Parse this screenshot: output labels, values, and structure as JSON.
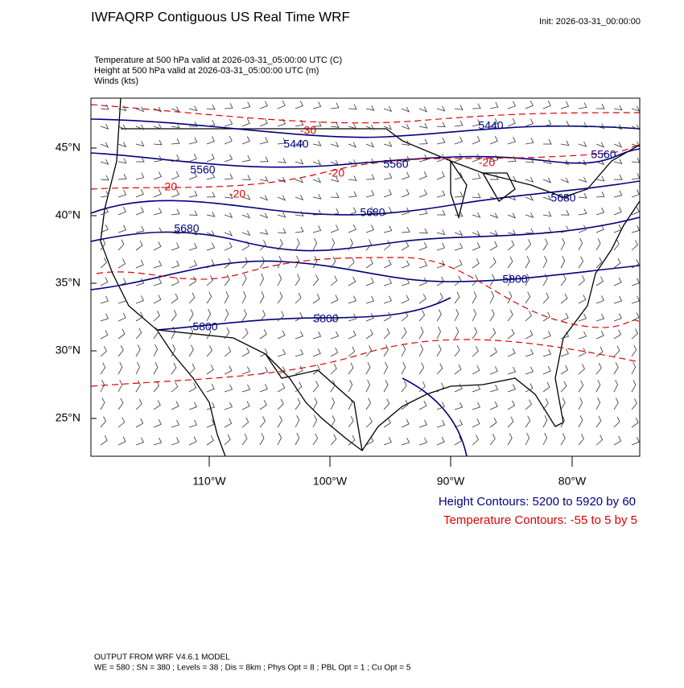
{
  "header": {
    "title": "IWFAQRP Contiguous US Real Time WRF",
    "init": "Init: 2026-03-31_00:00:00"
  },
  "fields": [
    "Temperature at 500 hPa valid at 2026-03-31_05:00:00 UTC   (C)",
    "Height at 500 hPa valid at 2026-03-31_05:00:00 UTC   (m)",
    "Winds   (kts)"
  ],
  "map": {
    "lat_labels": [
      "45°N",
      "40°N",
      "35°N",
      "30°N",
      "25°N"
    ],
    "lon_labels": [
      "110°W",
      "100°W",
      "90°W",
      "80°W"
    ],
    "height_labels": [
      "5440",
      "5440",
      "5560",
      "5560",
      "5560",
      "5680",
      "5680",
      "5680",
      "5800",
      "5800",
      "5800"
    ],
    "temperature_labels": [
      "-30",
      "-20",
      "-20",
      "-20",
      "-20"
    ]
  },
  "legend": {
    "height": "Height Contours: 5200 to 5920 by 60",
    "temperature": "Temperature Contours: -55 to 5 by 5"
  },
  "footer": [
    "OUTPUT FROM WRF V4.6.1 MODEL",
    "WE = 580 ; SN = 380 ; Levels = 38 ; Dis = 8km ; Phys Opt = 8 ; PBL Opt = 1 ; Cu Opt = 5"
  ]
}
